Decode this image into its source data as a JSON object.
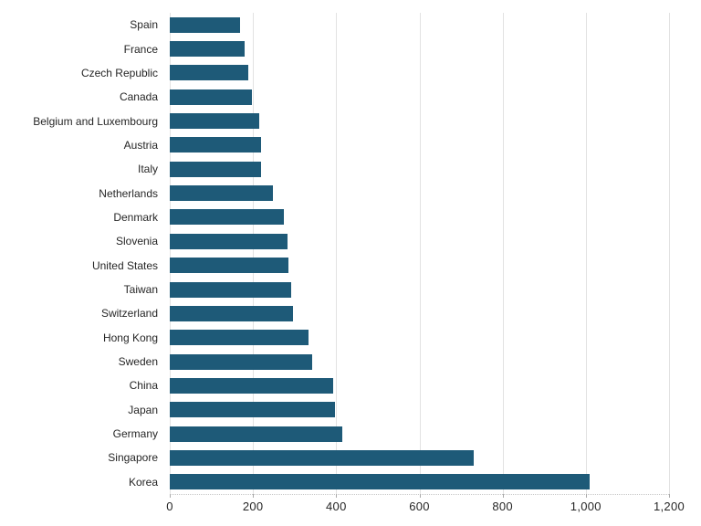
{
  "chart_data": {
    "type": "bar",
    "orientation": "horizontal",
    "title": "",
    "xlabel": "",
    "ylabel": "",
    "categories": [
      "Spain",
      "France",
      "Czech Republic",
      "Canada",
      "Belgium and Luxembourg",
      "Austria",
      "Italy",
      "Netherlands",
      "Denmark",
      "Slovenia",
      "United States",
      "Taiwan",
      "Switzerland",
      "Hong Kong",
      "Sweden",
      "China",
      "Japan",
      "Germany",
      "Singapore",
      "Korea"
    ],
    "values": [
      168,
      179,
      188,
      197,
      215,
      219,
      220,
      248,
      274,
      284,
      286,
      292,
      296,
      334,
      342,
      393,
      398,
      415,
      731,
      1010
    ],
    "xlim": [
      0,
      1200
    ],
    "x_ticks": [
      0,
      200,
      400,
      600,
      800,
      1000,
      1200
    ],
    "x_tick_labels": [
      "0",
      "200",
      "400",
      "600",
      "800",
      "1,000",
      "1,200"
    ],
    "grid": "vertical",
    "legend": "none",
    "bar_color": "#1e5a78"
  },
  "colors": {
    "bar": "#1e5a78",
    "gridline": "#e2e2e2",
    "axis_dotted": "#c9c9c9",
    "tick_mark": "#aaaaaa",
    "text": "#262626",
    "background": "#ffffff"
  }
}
